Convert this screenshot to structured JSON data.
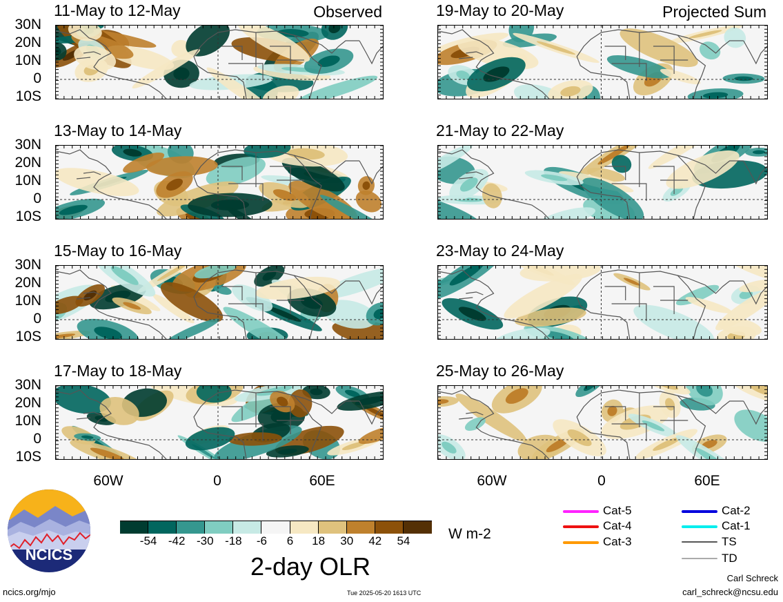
{
  "panels": [
    {
      "id": "p1",
      "title": "11-May to 12-May",
      "subtitle": "Observed",
      "seed": 3,
      "kind": "obs"
    },
    {
      "id": "p2",
      "title": "19-May to 20-May",
      "subtitle": "Projected Sum",
      "seed": 11,
      "kind": "proj"
    },
    {
      "id": "p3",
      "title": "13-May to 14-May",
      "subtitle": "",
      "seed": 5,
      "kind": "obs"
    },
    {
      "id": "p4",
      "title": "21-May to 22-May",
      "subtitle": "",
      "seed": 13,
      "kind": "proj"
    },
    {
      "id": "p5",
      "title": "15-May to 16-May",
      "subtitle": "",
      "seed": 7,
      "kind": "obs"
    },
    {
      "id": "p6",
      "title": "23-May to 24-May",
      "subtitle": "",
      "seed": 17,
      "kind": "proj"
    },
    {
      "id": "p7",
      "title": "17-May to 18-May",
      "subtitle": "",
      "seed": 9,
      "kind": "obs"
    },
    {
      "id": "p8",
      "title": "25-May to 26-May",
      "subtitle": "",
      "seed": 19,
      "kind": "proj"
    }
  ],
  "lat_labels": [
    "30N",
    "20N",
    "10N",
    "0",
    "10S"
  ],
  "lon_labels": [
    "60W",
    "0",
    "60E"
  ],
  "colorbar": {
    "colors": [
      "#003c30",
      "#01665e",
      "#35978f",
      "#80cdc1",
      "#c7eae5",
      "#f5f5f5",
      "#f6e8c3",
      "#dfc27d",
      "#bf812d",
      "#8c510a",
      "#543005"
    ],
    "labels": [
      "-54",
      "-42",
      "-30",
      "-18",
      "-6",
      "6",
      "18",
      "30",
      "42",
      "54"
    ],
    "units": "W m-2",
    "title": "2-day OLR"
  },
  "legend": [
    {
      "label": "Cat-5",
      "color": "#ff22ff"
    },
    {
      "label": "Cat-2",
      "color": "#0000dd"
    },
    {
      "label": "Cat-4",
      "color": "#ee1111"
    },
    {
      "label": "Cat-1",
      "color": "#00eeee"
    },
    {
      "label": "Cat-3",
      "color": "#ff9900"
    },
    {
      "label": "TS",
      "color": "#555555"
    },
    {
      "label": "TD",
      "color": "#aaaaaa"
    }
  ],
  "logo_text": "NCICS",
  "footer": {
    "site": "ncics.org/mjo",
    "timestamp": "Tue 2025-05-20 1613 UTC",
    "author": "Carl Schreck",
    "email": "carl_schreck@ncsu.edu"
  }
}
